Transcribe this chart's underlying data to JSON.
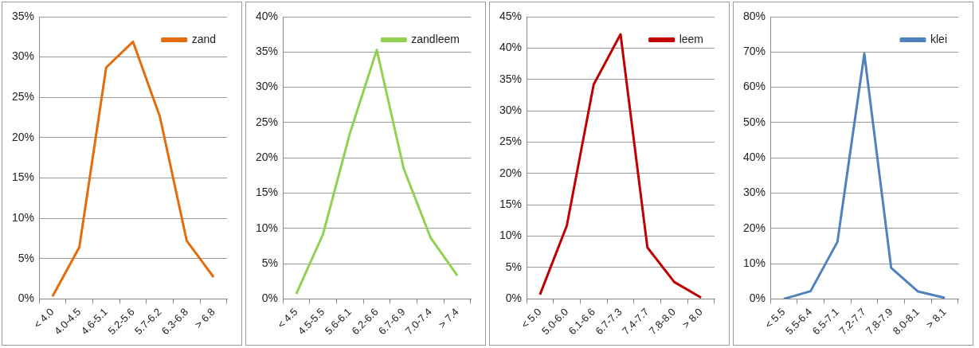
{
  "chart_data": [
    {
      "type": "line",
      "categories": [
        "< 4.0",
        "4.0-4.5",
        "4.6-5.1",
        "5.2-5.6",
        "5.7-6.2",
        "6.3-6.8",
        "> 6.8"
      ],
      "series": [
        {
          "name": "zand",
          "color": "#e46c0a",
          "values": [
            0.3,
            6.4,
            28.7,
            31.9,
            22.6,
            7.2,
            2.7
          ]
        }
      ],
      "ylim": [
        0,
        35
      ],
      "yticks": [
        {
          "value": 0,
          "label": "0%"
        },
        {
          "value": 5,
          "label": "5%"
        },
        {
          "value": 10,
          "label": "10%"
        },
        {
          "value": 15,
          "label": "15%"
        },
        {
          "value": 20,
          "label": "20%"
        },
        {
          "value": 25,
          "label": "25%"
        },
        {
          "value": 30,
          "label": "30%"
        },
        {
          "value": 35,
          "label": "35%"
        }
      ],
      "grid": "y",
      "legend": "top right",
      "marker": "none",
      "line_style": "solid"
    },
    {
      "type": "line",
      "categories": [
        "< 4.5",
        "4.5-5.5",
        "5.6-6.1",
        "6.2-6.6",
        "6.7-6.9",
        "7.0-7.4",
        "> 7.4"
      ],
      "series": [
        {
          "name": "zandleem",
          "color": "#92d050",
          "values": [
            0.7,
            9.2,
            23.5,
            35.3,
            18.5,
            8.7,
            3.3
          ]
        }
      ],
      "ylim": [
        0,
        40
      ],
      "yticks": [
        {
          "value": 0,
          "label": "0%"
        },
        {
          "value": 5,
          "label": "5%"
        },
        {
          "value": 10,
          "label": "10%"
        },
        {
          "value": 15,
          "label": "15%"
        },
        {
          "value": 20,
          "label": "20%"
        },
        {
          "value": 25,
          "label": "25%"
        },
        {
          "value": 30,
          "label": "30%"
        },
        {
          "value": 35,
          "label": "35%"
        },
        {
          "value": 40,
          "label": "40%"
        }
      ],
      "grid": "y",
      "legend": "top right",
      "marker": "none",
      "line_style": "solid"
    },
    {
      "type": "line",
      "categories": [
        "< 5.0",
        "5.0-6.0",
        "6.1-6.6",
        "6.7-7.3",
        "7.4-7.7",
        "7.8-8.0",
        "> 8.0"
      ],
      "series": [
        {
          "name": "leem",
          "color": "#c00000",
          "values": [
            0.7,
            11.7,
            34.2,
            42.2,
            8.2,
            2.7,
            0.2
          ]
        }
      ],
      "ylim": [
        0,
        45
      ],
      "yticks": [
        {
          "value": 0,
          "label": "0%"
        },
        {
          "value": 5,
          "label": "5%"
        },
        {
          "value": 10,
          "label": "10%"
        },
        {
          "value": 15,
          "label": "15%"
        },
        {
          "value": 20,
          "label": "20%"
        },
        {
          "value": 25,
          "label": "25%"
        },
        {
          "value": 30,
          "label": "30%"
        },
        {
          "value": 35,
          "label": "35%"
        },
        {
          "value": 40,
          "label": "40%"
        },
        {
          "value": 45,
          "label": "45%"
        }
      ],
      "grid": "y",
      "legend": "top right",
      "marker": "none",
      "line_style": "solid"
    },
    {
      "type": "line",
      "categories": [
        "< 5.5",
        "5.5-6.4",
        "6.5-7.1",
        "7.2-7.7",
        "7.8-7.9",
        "8.0-8.1",
        "> 8.1"
      ],
      "series": [
        {
          "name": "klei",
          "color": "#4f81bd",
          "values": [
            0,
            2.2,
            16.2,
            69.5,
            8.8,
            2.1,
            0.3
          ]
        }
      ],
      "ylim": [
        0,
        80
      ],
      "yticks": [
        {
          "value": 0,
          "label": "0%"
        },
        {
          "value": 10,
          "label": "10%"
        },
        {
          "value": 20,
          "label": "20%"
        },
        {
          "value": 30,
          "label": "30%"
        },
        {
          "value": 40,
          "label": "40%"
        },
        {
          "value": 50,
          "label": "50%"
        },
        {
          "value": 60,
          "label": "60%"
        },
        {
          "value": 70,
          "label": "70%"
        },
        {
          "value": 80,
          "label": "80%"
        }
      ],
      "grid": "y",
      "legend": "top right",
      "marker": "none",
      "line_style": "solid"
    }
  ]
}
